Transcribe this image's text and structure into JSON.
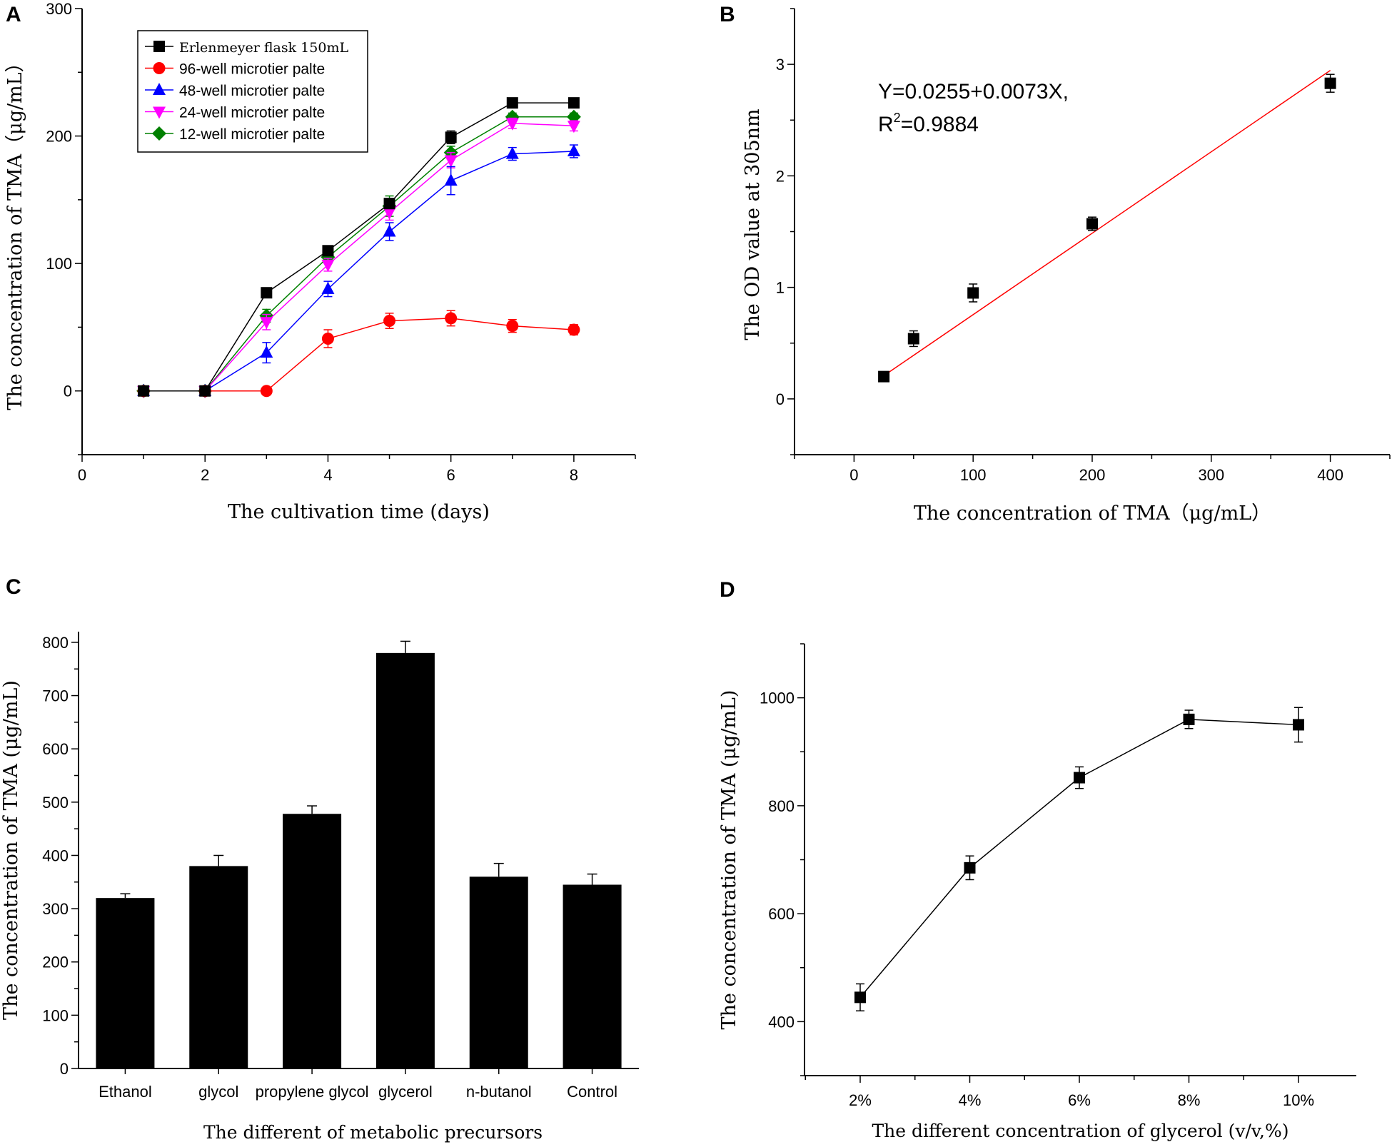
{
  "chart_data": [
    {
      "panel": "A",
      "type": "line",
      "xlabel": "The cultivation time (days)",
      "ylabel": "The concentration of TMA（μg/mL）",
      "xlim": [
        0,
        9
      ],
      "ylim": [
        -50,
        300
      ],
      "xticks": [
        0,
        2,
        4,
        6,
        8
      ],
      "yticks": [
        0,
        100,
        200,
        300
      ],
      "legend_position": "top-left",
      "x": [
        1,
        2,
        3,
        4,
        5,
        6,
        7,
        8
      ],
      "series": [
        {
          "name": "Erlenmeyer flask 150mL",
          "color": "#000000",
          "marker": "square",
          "values": [
            0,
            0,
            77,
            110,
            147,
            199,
            226,
            226
          ],
          "errors": [
            2,
            2,
            3,
            3,
            4,
            5,
            3,
            3
          ]
        },
        {
          "name": "96-well microtier palte",
          "color": "#ff0000",
          "marker": "circle",
          "values": [
            0,
            0,
            0,
            41,
            55,
            57,
            51,
            48
          ],
          "errors": [
            1,
            1,
            1,
            7,
            6,
            6,
            5,
            4
          ]
        },
        {
          "name": "48-well microtier palte",
          "color": "#0000ff",
          "marker": "triangle-up",
          "values": [
            0,
            0,
            30,
            80,
            125,
            165,
            186,
            188
          ],
          "errors": [
            1,
            1,
            8,
            6,
            7,
            11,
            5,
            5
          ]
        },
        {
          "name": "24-well microtier palte",
          "color": "#ff00ff",
          "marker": "triangle-down",
          "values": [
            0,
            0,
            54,
            99,
            140,
            181,
            210,
            208
          ],
          "errors": [
            1,
            1,
            6,
            5,
            6,
            6,
            4,
            4
          ]
        },
        {
          "name": "12-well microtier palte",
          "color": "#008000",
          "marker": "diamond",
          "values": [
            0,
            0,
            59,
            105,
            145,
            187,
            215,
            215
          ],
          "errors": [
            1,
            1,
            5,
            5,
            8,
            5,
            3,
            3
          ]
        }
      ]
    },
    {
      "panel": "B",
      "type": "scatter",
      "xlabel": "The concentration of TMA（μg/mL）",
      "ylabel": "The OD value at 305nm",
      "xlim": [
        -50,
        450
      ],
      "ylim": [
        -0.5,
        3.5
      ],
      "xticks": [
        0,
        100,
        200,
        300,
        400
      ],
      "yticks": [
        0,
        1,
        2,
        3
      ],
      "annotation_line1": "Y=0.0255+0.0073X,",
      "annotation_line2_prefix": "R",
      "annotation_line2_sup": "2",
      "annotation_line2_suffix": "=0.9884",
      "fit": {
        "intercept": 0.0255,
        "slope": 0.0073,
        "x_range": [
          25,
          400
        ],
        "color": "#ff0000"
      },
      "x": [
        25,
        50,
        100,
        200,
        400
      ],
      "values": [
        0.2,
        0.54,
        0.95,
        1.57,
        2.83
      ],
      "errors": [
        0.03,
        0.07,
        0.08,
        0.06,
        0.08
      ]
    },
    {
      "panel": "C",
      "type": "bar",
      "xlabel": "The different of metabolic precursors",
      "ylabel": "The concentration of TMA (μg/mL)",
      "ylim": [
        0,
        820
      ],
      "yticks": [
        0,
        100,
        200,
        300,
        400,
        500,
        600,
        700,
        800
      ],
      "categories": [
        "Ethanol",
        "glycol",
        "propylene glycol",
        "glycerol",
        "n-butanol",
        "Control"
      ],
      "values": [
        320,
        380,
        478,
        780,
        360,
        345
      ],
      "errors": [
        8,
        20,
        15,
        22,
        25,
        20
      ]
    },
    {
      "panel": "D",
      "type": "line",
      "xlabel": "The different concentration of glycerol (v/v,%)",
      "ylabel": "The concentration of TMA (μg/mL)",
      "ylim": [
        300,
        1100
      ],
      "yticks": [
        400,
        600,
        800,
        1000
      ],
      "categories": [
        "2%",
        "4%",
        "6%",
        "8%",
        "10%"
      ],
      "values": [
        445,
        685,
        852,
        960,
        950
      ],
      "errors": [
        25,
        22,
        20,
        17,
        32
      ]
    }
  ]
}
